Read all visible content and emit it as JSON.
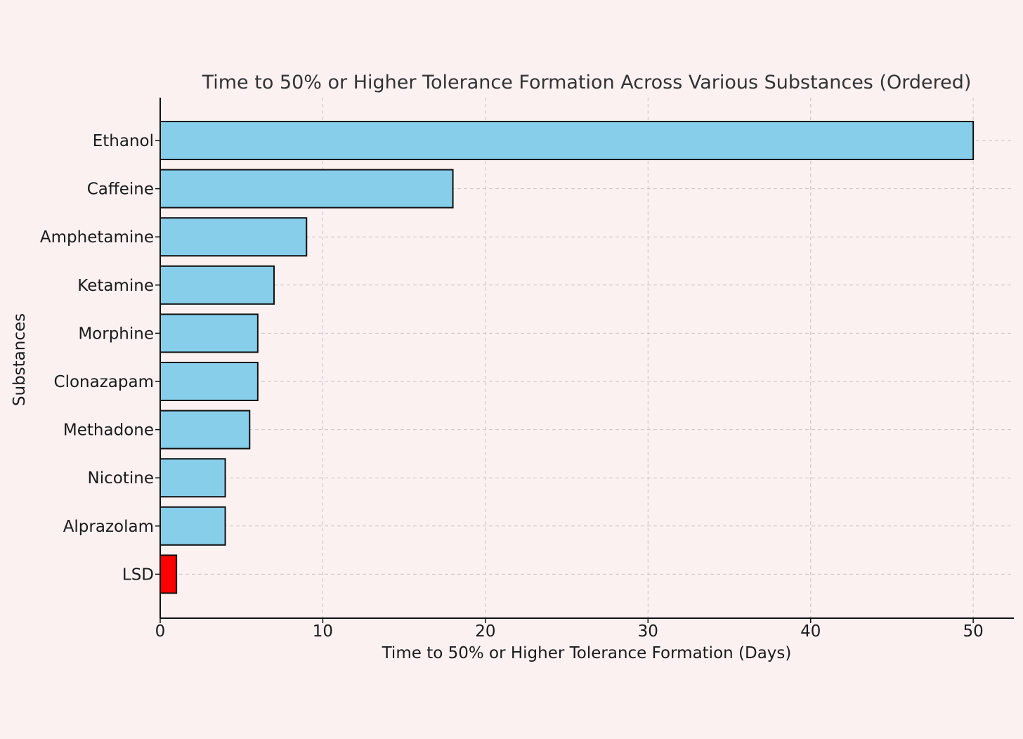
{
  "chart_data": {
    "type": "bar",
    "orientation": "horizontal",
    "title": "Time to 50% or Higher Tolerance Formation Across Various Substances (Ordered)",
    "xlabel": "Time to 50% or Higher Tolerance Formation (Days)",
    "ylabel": "Substances",
    "categories": [
      "Ethanol",
      "Caffeine",
      "Amphetamine",
      "Ketamine",
      "Morphine",
      "Clonazapam",
      "Methadone",
      "Nicotine",
      "Alprazolam",
      "LSD"
    ],
    "values": [
      50,
      18,
      9,
      7,
      6,
      6,
      5.5,
      4,
      4,
      1
    ],
    "bar_colors": [
      "#87ceeb",
      "#87ceeb",
      "#87ceeb",
      "#87ceeb",
      "#87ceeb",
      "#87ceeb",
      "#87ceeb",
      "#87ceeb",
      "#87ceeb",
      "#ff0000"
    ],
    "xlim": [
      0,
      52.5
    ],
    "xticks": [
      "0",
      "10",
      "20",
      "30",
      "40",
      "50"
    ],
    "grid": true,
    "legend": "none"
  },
  "colors": {
    "background": "#fcf1f1",
    "default_bar": "#87ceeb",
    "highlight_bar": "#ff0000",
    "edge": "#111111"
  }
}
